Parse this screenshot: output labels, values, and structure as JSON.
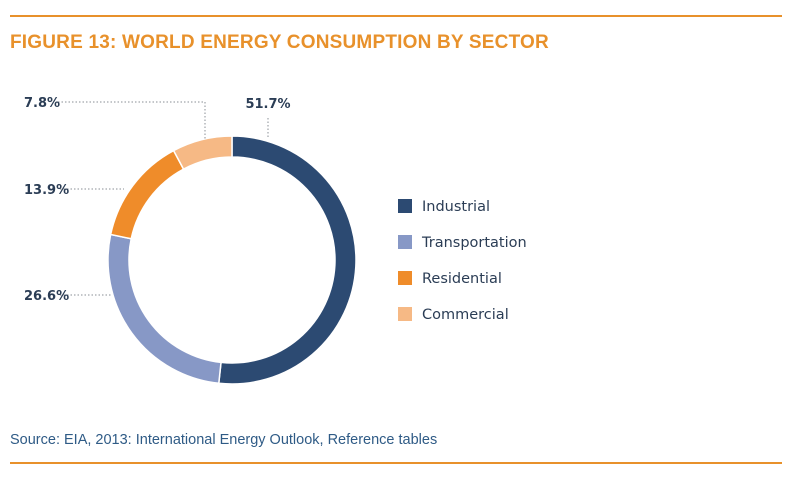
{
  "title": "FIGURE 13: WORLD ENERGY CONSUMPTION BY SECTOR",
  "source": "Source: EIA, 2013: International Energy Outlook, Reference tables",
  "colors": {
    "accent": "#e8912b",
    "source_text": "#2f5b86"
  },
  "chart_data": {
    "type": "pie",
    "donut": true,
    "categories": [
      "Industrial",
      "Transportation",
      "Residential",
      "Commercial"
    ],
    "values": [
      51.7,
      26.6,
      13.9,
      7.8
    ],
    "labels": [
      "51.7%",
      "26.6%",
      "13.9%",
      "7.8%"
    ],
    "colors": [
      "#2c4a72",
      "#8798c6",
      "#ef8c2a",
      "#f6b985"
    ],
    "legend_position": "right",
    "start_angle": "top",
    "direction": "clockwise"
  }
}
